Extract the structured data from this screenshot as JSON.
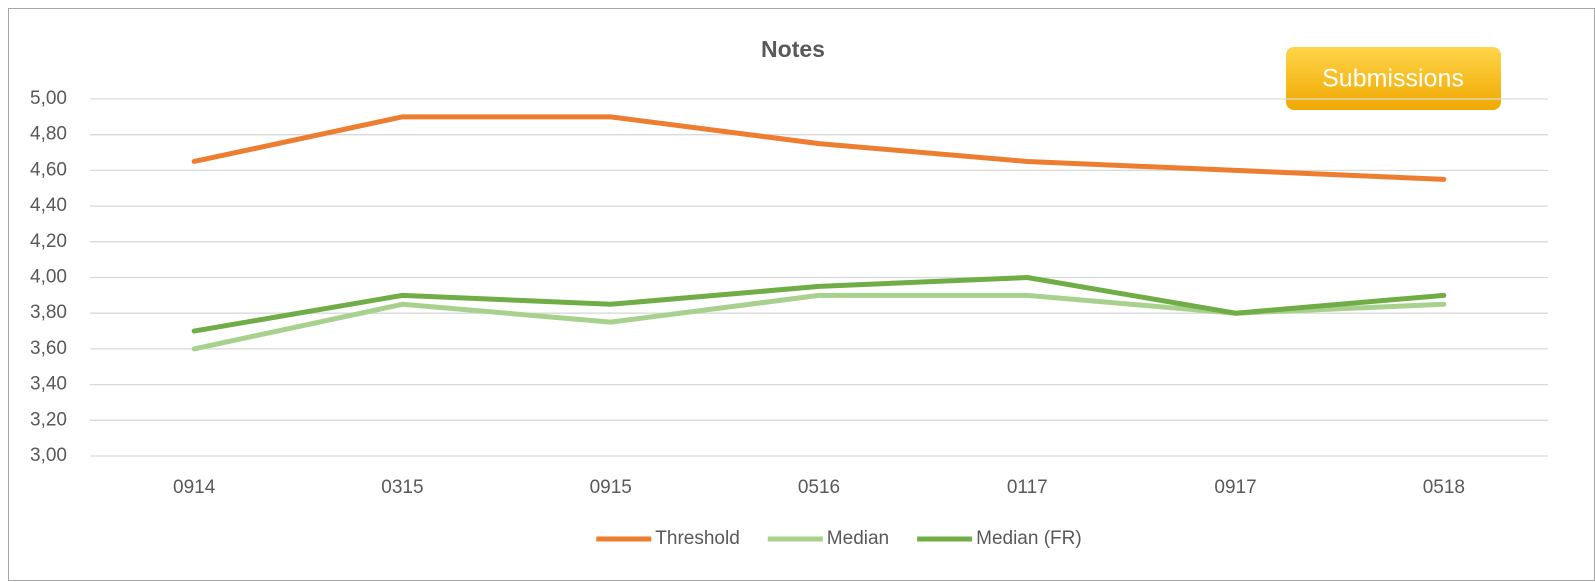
{
  "chart_data": {
    "type": "line",
    "title": "Notes",
    "annotation": "Submissions",
    "categories": [
      "0914",
      "0315",
      "0915",
      "0516",
      "0117",
      "0917",
      "0518"
    ],
    "series": [
      {
        "name": "Threshold",
        "color": "#ed7d31",
        "values": [
          4.65,
          4.9,
          4.9,
          4.75,
          4.65,
          4.6,
          4.55
        ]
      },
      {
        "name": "Median",
        "color": "#a9d18e",
        "values": [
          3.6,
          3.85,
          3.75,
          3.9,
          3.9,
          3.8,
          3.85
        ]
      },
      {
        "name": "Median (FR)",
        "color": "#70ad47",
        "values": [
          3.7,
          3.9,
          3.85,
          3.95,
          4.0,
          3.8,
          3.9
        ]
      }
    ],
    "ylim": [
      3,
      5
    ],
    "yticks": [
      {
        "value": 3,
        "label": "3,00"
      },
      {
        "value": 3.2,
        "label": "3,20"
      },
      {
        "value": 3.4,
        "label": "3,40"
      },
      {
        "value": 3.6,
        "label": "3,60"
      },
      {
        "value": 3.8,
        "label": "3,80"
      },
      {
        "value": 4,
        "label": "4,00"
      },
      {
        "value": 4.2,
        "label": "4,20"
      },
      {
        "value": 4.4,
        "label": "4,40"
      },
      {
        "value": 4.6,
        "label": "4,60"
      },
      {
        "value": 4.8,
        "label": "4,80"
      },
      {
        "value": 5,
        "label": "5,00"
      }
    ],
    "grid": true,
    "legend": "bottom"
  }
}
